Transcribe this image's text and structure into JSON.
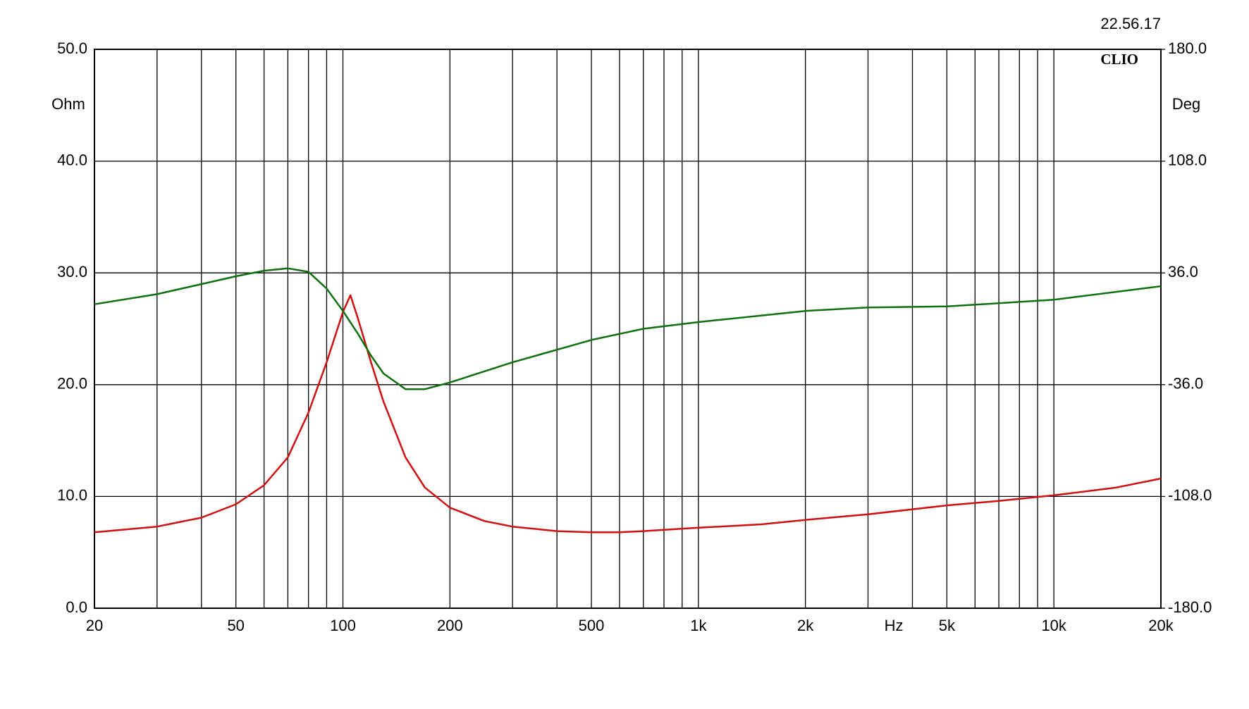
{
  "chart_data": {
    "type": "line",
    "timestamp": "22.56.17",
    "logo": "CLIO",
    "y_label": "Ohm",
    "y2_label": "Deg",
    "x_label": "Hz",
    "log_x": true,
    "grid": true,
    "xlim": [
      20,
      20000
    ],
    "xticks": [
      20,
      50,
      100,
      200,
      500,
      {
        "value": 1000,
        "label": "1k"
      },
      {
        "value": 2000,
        "label": "2k"
      },
      {
        "value": 5000,
        "label": "5k"
      },
      {
        "value": 10000,
        "label": "10k"
      },
      {
        "value": 20000,
        "label": "20k"
      }
    ],
    "xminor_ticks": [
      30,
      40,
      60,
      70,
      80,
      90,
      300,
      400,
      600,
      700,
      800,
      900,
      3000,
      4000,
      6000,
      7000,
      8000,
      9000
    ],
    "ylim": [
      0,
      50
    ],
    "yticks": [
      {
        "value": 0,
        "label": "0.0"
      },
      {
        "value": 10,
        "label": "10.0"
      },
      {
        "value": 20,
        "label": "20.0"
      },
      {
        "value": 30,
        "label": "30.0"
      },
      {
        "value": 40,
        "label": "40.0"
      },
      {
        "value": 50,
        "label": "50.0"
      }
    ],
    "y2lim": [
      -180,
      180
    ],
    "y2ticks": [
      {
        "value": -180,
        "label": "-180.0"
      },
      {
        "value": -108,
        "label": "-108.0"
      },
      {
        "value": -36,
        "label": "-36.0"
      },
      {
        "value": 36,
        "label": "36.0"
      },
      {
        "value": 108,
        "label": "108.0"
      },
      {
        "value": 180,
        "label": "180.0"
      }
    ],
    "series": [
      {
        "color": "#d01010",
        "x": [
          20,
          30,
          40,
          50,
          60,
          70,
          80,
          90,
          100,
          105,
          110,
          120,
          130,
          150,
          170,
          200,
          250,
          300,
          400,
          500,
          600,
          700,
          1000,
          1500,
          2000,
          3000,
          5000,
          7000,
          10000,
          15000,
          20000
        ],
        "values": [
          6.8,
          7.3,
          8.1,
          9.3,
          11,
          13.5,
          17.5,
          22,
          26.5,
          28,
          26,
          22,
          18.5,
          13.5,
          10.8,
          9.0,
          7.8,
          7.3,
          6.9,
          6.8,
          6.8,
          6.9,
          7.2,
          7.5,
          7.9,
          8.4,
          9.2,
          9.6,
          10.1,
          10.8,
          11.6
        ]
      },
      {
        "color": "#107010",
        "axis": "y2",
        "x": [
          20,
          30,
          40,
          50,
          60,
          70,
          80,
          90,
          100,
          110,
          120,
          130,
          150,
          170,
          200,
          300,
          500,
          700,
          1000,
          2000,
          3000,
          5000,
          10000,
          20000
        ],
        "values": [
          15.8,
          22.3,
          28.8,
          33.8,
          37.4,
          38.9,
          36.7,
          25.9,
          11.5,
          -2.9,
          -17.3,
          -28.8,
          -38.9,
          -38.9,
          -34.6,
          -21.6,
          -7.2,
          0,
          4.3,
          11.5,
          13.7,
          14.4,
          18.7,
          27.4
        ]
      }
    ]
  }
}
